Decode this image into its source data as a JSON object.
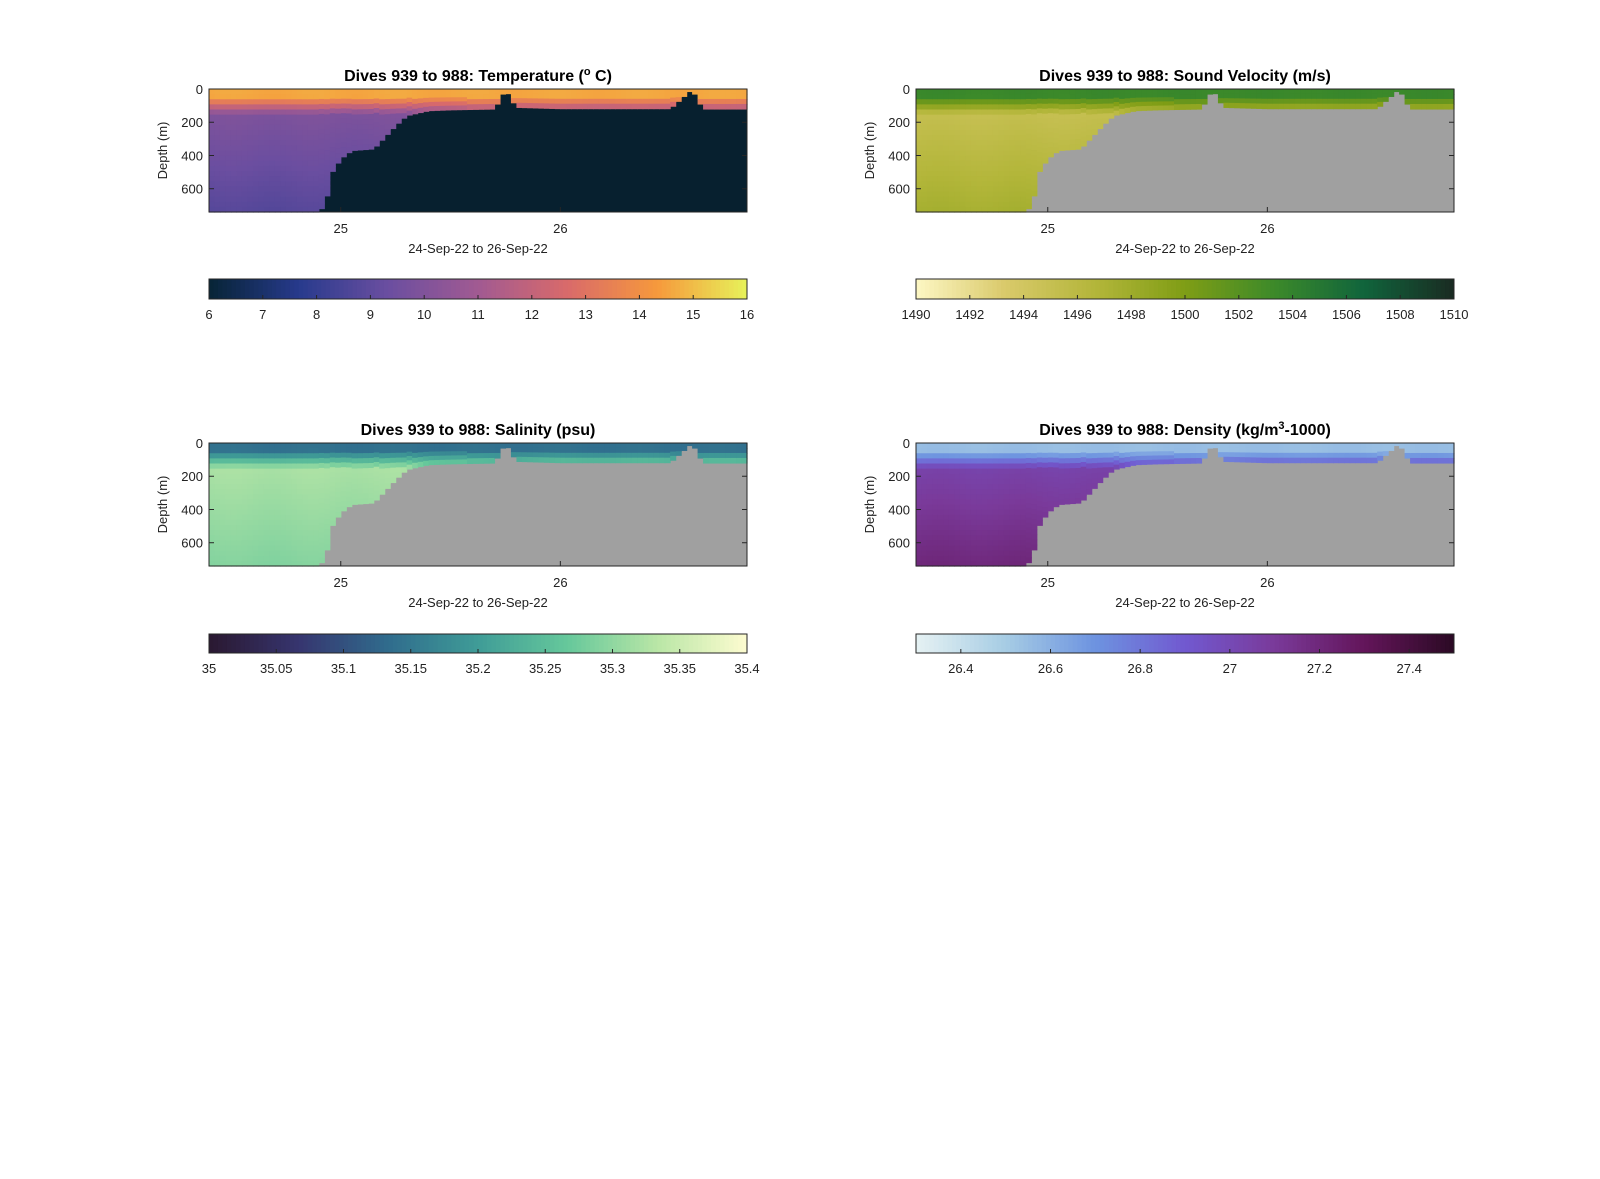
{
  "chart_data": [
    {
      "type": "heatmap",
      "title_prefix": "Dives 939 to 988: Temperature (",
      "title_sup": "o",
      "title_suffix": " C)",
      "xlabel": "24-Sep-22 to 26-Sep-22",
      "ylabel": "Depth (m)",
      "x_ticks": [
        "25",
        "26"
      ],
      "x_tick_values": [
        25,
        26
      ],
      "xlim": [
        24.4,
        26.85
      ],
      "y_ticks": [
        "0",
        "200",
        "400",
        "600"
      ],
      "y_tick_values": [
        0,
        200,
        400,
        600
      ],
      "ylim": [
        0,
        740
      ],
      "colorbar": {
        "ticks": [
          "6",
          "7",
          "8",
          "9",
          "10",
          "11",
          "12",
          "13",
          "14",
          "15",
          "16"
        ],
        "tick_values": [
          6,
          7,
          8,
          9,
          10,
          11,
          12,
          13,
          14,
          15,
          16
        ],
        "range": [
          6,
          16
        ],
        "colors": [
          "#072436",
          "#273a8c",
          "#6b4ea0",
          "#a15a92",
          "#d96a6a",
          "#f6993c",
          "#e7f25a"
        ]
      },
      "no_data_color": "#07202f",
      "surface_value": 14.6,
      "deep_value_range": [
        10.2,
        8.8
      ],
      "max_depth_profile": {
        "x": [
          24.4,
          24.9,
          24.93,
          24.96,
          25.0,
          25.05,
          25.15,
          25.2,
          25.25,
          25.3,
          25.4,
          25.5,
          25.7,
          25.75,
          25.8,
          26.0,
          26.5,
          26.6,
          26.65,
          26.85
        ],
        "depth": [
          740,
          740,
          690,
          500,
          420,
          370,
          360,
          290,
          220,
          160,
          130,
          125,
          120,
          0,
          110,
          118,
          118,
          0,
          120,
          120
        ]
      }
    },
    {
      "type": "heatmap",
      "title_prefix": "Dives 939 to 988: Sound Velocity (m/s)",
      "title_sup": "",
      "title_suffix": "",
      "xlabel": "24-Sep-22 to 26-Sep-22",
      "ylabel": "Depth (m)",
      "x_ticks": [
        "25",
        "26"
      ],
      "x_tick_values": [
        25,
        26
      ],
      "xlim": [
        24.4,
        26.85
      ],
      "y_ticks": [
        "0",
        "200",
        "400",
        "600"
      ],
      "y_tick_values": [
        0,
        200,
        400,
        600
      ],
      "ylim": [
        0,
        740
      ],
      "colorbar": {
        "ticks": [
          "1490",
          "1492",
          "1494",
          "1496",
          "1498",
          "1500",
          "1502",
          "1504",
          "1506",
          "1508",
          "1510"
        ],
        "tick_values": [
          1490,
          1492,
          1494,
          1496,
          1498,
          1500,
          1502,
          1504,
          1506,
          1508,
          1510
        ],
        "range": [
          1490,
          1510
        ],
        "colors": [
          "#fdf7c4",
          "#d9c96a",
          "#b3b63a",
          "#7f9d15",
          "#3c8a2a",
          "#10643c",
          "#1a2b22"
        ]
      },
      "no_data_color": "#a0a0a0",
      "surface_value": 1503.5,
      "deep_value_range": [
        1494.5,
        1497.5
      ],
      "max_depth_profile": {
        "x": [
          24.4,
          24.9,
          24.93,
          24.96,
          25.0,
          25.05,
          25.15,
          25.2,
          25.25,
          25.3,
          25.4,
          25.5,
          25.7,
          25.75,
          25.8,
          26.0,
          26.5,
          26.6,
          26.65,
          26.85
        ],
        "depth": [
          740,
          740,
          690,
          500,
          420,
          370,
          360,
          290,
          220,
          160,
          130,
          125,
          120,
          0,
          110,
          118,
          118,
          0,
          120,
          120
        ]
      }
    },
    {
      "type": "heatmap",
      "title_prefix": "Dives 939 to 988: Salinity (psu)",
      "title_sup": "",
      "title_suffix": "",
      "xlabel": "24-Sep-22 to 26-Sep-22",
      "ylabel": "Depth (m)",
      "x_ticks": [
        "25",
        "26"
      ],
      "x_tick_values": [
        25,
        26
      ],
      "xlim": [
        24.4,
        26.85
      ],
      "y_ticks": [
        "0",
        "200",
        "400",
        "600"
      ],
      "y_tick_values": [
        0,
        200,
        400,
        600
      ],
      "ylim": [
        0,
        740
      ],
      "colorbar": {
        "ticks": [
          "35",
          "35.05",
          "35.1",
          "35.15",
          "35.2",
          "35.25",
          "35.3",
          "35.35",
          "35.4"
        ],
        "tick_values": [
          35,
          35.05,
          35.1,
          35.15,
          35.2,
          35.25,
          35.3,
          35.35,
          35.4
        ],
        "range": [
          35,
          35.4
        ],
        "colors": [
          "#2a1830",
          "#36356f",
          "#306c8d",
          "#3f9c97",
          "#66c89b",
          "#b9e6a6",
          "#fdfcd0"
        ]
      },
      "no_data_color": "#a0a0a0",
      "surface_value": 35.14,
      "deep_value_range": [
        35.33,
        35.29
      ],
      "max_depth_profile": {
        "x": [
          24.4,
          24.9,
          24.93,
          24.96,
          25.0,
          25.05,
          25.15,
          25.2,
          25.25,
          25.3,
          25.4,
          25.5,
          25.7,
          25.75,
          25.8,
          26.0,
          26.5,
          26.6,
          26.65,
          26.85
        ],
        "depth": [
          740,
          740,
          690,
          500,
          420,
          370,
          360,
          290,
          220,
          160,
          130,
          125,
          120,
          0,
          110,
          118,
          118,
          0,
          120,
          120
        ]
      }
    },
    {
      "type": "heatmap",
      "title_prefix": "Dives 939 to 988: Density (kg/m",
      "title_sup": "3",
      "title_suffix": "-1000)",
      "xlabel": "24-Sep-22 to 26-Sep-22",
      "ylabel": "Depth (m)",
      "x_ticks": [
        "25",
        "26"
      ],
      "x_tick_values": [
        25,
        26
      ],
      "xlim": [
        24.4,
        26.85
      ],
      "y_ticks": [
        "0",
        "200",
        "400",
        "600"
      ],
      "y_tick_values": [
        0,
        200,
        400,
        600
      ],
      "ylim": [
        0,
        740
      ],
      "colorbar": {
        "ticks": [
          "26.4",
          "26.6",
          "26.8",
          "27",
          "27.2",
          "27.4"
        ],
        "tick_values": [
          26.4,
          26.6,
          26.8,
          27.0,
          27.2,
          27.4
        ],
        "range": [
          26.3,
          27.5
        ],
        "colors": [
          "#e6f2f3",
          "#a6cce4",
          "#6d93e0",
          "#7159d0",
          "#7a3a9a",
          "#63155a",
          "#2b0a24"
        ]
      },
      "no_data_color": "#a0a0a0",
      "surface_value": 26.55,
      "deep_value_range": [
        27.0,
        27.2
      ],
      "max_depth_profile": {
        "x": [
          24.4,
          24.9,
          24.93,
          24.96,
          25.0,
          25.05,
          25.15,
          25.2,
          25.25,
          25.3,
          25.4,
          25.5,
          25.7,
          25.75,
          25.8,
          26.0,
          26.5,
          26.6,
          26.65,
          26.85
        ],
        "depth": [
          740,
          740,
          690,
          500,
          420,
          370,
          360,
          290,
          220,
          160,
          130,
          125,
          120,
          0,
          110,
          118,
          118,
          0,
          120,
          120
        ]
      }
    }
  ]
}
